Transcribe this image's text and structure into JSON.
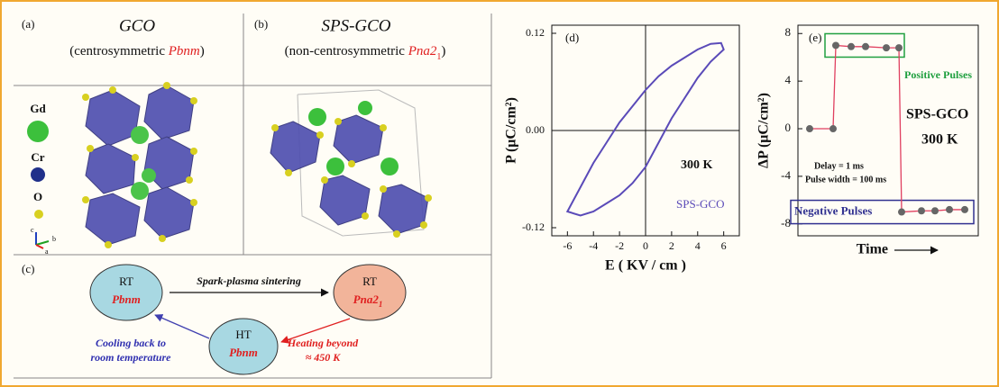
{
  "panel_a": {
    "label": "(a)",
    "title": "GCO",
    "subtitle_pre": "(centrosymmetric ",
    "subtitle_group": "Pbnm",
    "subtitle_post": ")",
    "legend": [
      "Gd",
      "Cr",
      "O"
    ],
    "axes": [
      "c",
      "b",
      "a"
    ]
  },
  "panel_b": {
    "label": "(b)",
    "title": "SPS-GCO",
    "subtitle_pre": "(non-centrosymmetric ",
    "subtitle_group": "Pna2",
    "subtitle_sub": "1",
    "subtitle_post": ")"
  },
  "panel_c": {
    "label": "(c)",
    "nodes": [
      {
        "top": "RT",
        "bottom": "Pbnm"
      },
      {
        "top": "RT",
        "bottom": "Pna2",
        "bottom_sub": "1"
      },
      {
        "top": "HT",
        "bottom": "Pbnm"
      }
    ],
    "edges": [
      {
        "label": [
          "Spark-plasma sintering"
        ]
      },
      {
        "label": [
          "Heating beyond",
          "≈ 450  K"
        ]
      },
      {
        "label": [
          "Cooling back to",
          "room temperature"
        ]
      }
    ]
  },
  "chart_data": [
    {
      "type": "line",
      "label": "(d)",
      "xlabel": "E ( KV / cm )",
      "ylabel": "P (μC/cm²)",
      "x": [
        -6,
        -5,
        -4,
        -3,
        -2,
        -1,
        0,
        1,
        2,
        3,
        4,
        5,
        5.8,
        6,
        5,
        4,
        3,
        2,
        1,
        0,
        -1,
        -2,
        -3,
        -4,
        -5,
        -6
      ],
      "values": [
        -0.1,
        -0.07,
        -0.04,
        -0.015,
        0.01,
        0.03,
        0.05,
        0.067,
        0.08,
        0.09,
        0.1,
        0.107,
        0.108,
        0.1,
        0.085,
        0.065,
        0.04,
        0.015,
        -0.015,
        -0.045,
        -0.065,
        -0.08,
        -0.09,
        -0.1,
        -0.105,
        -0.1
      ],
      "color": "#5a4ab8",
      "xlim": [
        -7.2,
        7.2
      ],
      "xticks": [
        -6,
        -4,
        -2,
        0,
        2,
        4,
        6
      ],
      "ylim": [
        -0.13,
        0.13
      ],
      "yticks": [
        -0.12,
        {
          "value": 0,
          "label": "0.00"
        },
        0.12
      ],
      "annotations": [
        "300 K",
        "SPS-GCO"
      ]
    },
    {
      "type": "line",
      "label": "(e)",
      "xlabel": "Time",
      "ylabel": "ΔP (μC/cm²)",
      "categories": [
        null,
        null,
        null,
        null,
        null,
        null,
        null,
        null,
        null,
        null,
        null,
        null
      ],
      "values": [
        0,
        0,
        7,
        6.9,
        6.9,
        6.8,
        6.8,
        -7,
        -6.9,
        -6.9,
        -6.8,
        -6.8
      ],
      "color": "#e04060",
      "marker_color": "#666666",
      "ylim": [
        -9,
        8.7
      ],
      "yticks": [
        -8,
        -4,
        0,
        4,
        8
      ],
      "annotations": [
        "Positive Pulses",
        "SPS-GCO",
        "300 K",
        "Delay = 1 ms",
        "Pulse width = 100 ms",
        "Negative Pulses"
      ]
    }
  ]
}
